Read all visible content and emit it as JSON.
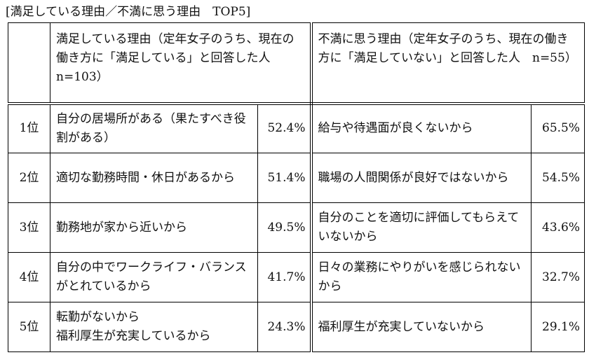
{
  "caption": "[満足している理由／不満に思う理由　TOP5]",
  "header": {
    "satisfied": "満足している理由（定年女子のうち、現在の働き方に「満足している」と回答した人　n=103）",
    "dissatisfied": "不満に思う理由（定年女子のうち、現在の働き方に「満足していない」と回答した人　n=55）"
  },
  "rows": [
    {
      "rank": "1位",
      "s_reason": "自分の居場所がある（果たすべき役割がある）",
      "s_pct": "52.4%",
      "d_reason": "給与や待遇面が良くないから",
      "d_pct": "65.5%"
    },
    {
      "rank": "2位",
      "s_reason": "適切な勤務時間・休日があるから",
      "s_pct": "51.4%",
      "d_reason": "職場の人間関係が良好ではないから",
      "d_pct": "54.5%"
    },
    {
      "rank": "3位",
      "s_reason": "勤務地が家から近いから",
      "s_pct": "49.5%",
      "d_reason": "自分のことを適切に評価してもらえていないから",
      "d_pct": "43.6%"
    },
    {
      "rank": "4位",
      "s_reason": "自分の中でワークライフ・バランスがとれているから",
      "s_pct": "41.7%",
      "d_reason": "日々の業務にやりがいを感じられないから",
      "d_pct": "32.7%"
    },
    {
      "rank": "5位",
      "s_reason": "転勤がないから",
      "s_reason2": "福利厚生が充実しているから",
      "s_pct": "24.3%",
      "d_reason": "福利厚生が充実していないから",
      "d_pct": "29.1%"
    }
  ]
}
